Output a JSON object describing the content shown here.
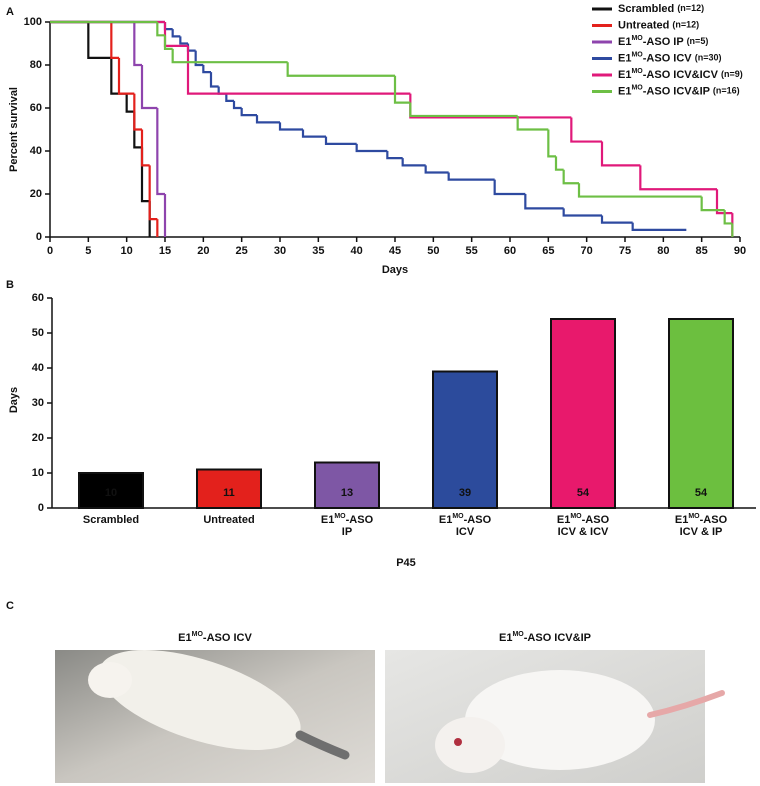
{
  "chart_data": [
    {
      "type": "step",
      "panel_label": "A",
      "x_label": "Days",
      "y_label": "Percent survival",
      "xlim": [
        0,
        90
      ],
      "xticks": [
        0,
        5,
        10,
        15,
        20,
        25,
        30,
        35,
        40,
        45,
        50,
        55,
        60,
        65,
        70,
        75,
        80,
        85,
        90
      ],
      "ylim": [
        0,
        100
      ],
      "yticks": [
        0,
        20,
        40,
        60,
        80,
        100
      ],
      "series": [
        {
          "name": "Scrambled (n=12)",
          "color": "#111111",
          "x": [
            0,
            5,
            8,
            10,
            11,
            12,
            13
          ],
          "values": [
            100,
            83.3,
            66.7,
            58.3,
            41.7,
            16.7,
            0
          ]
        },
        {
          "name": "Untreated (n=12)",
          "color": "#e3211c",
          "x": [
            0,
            8,
            9,
            11,
            12,
            13,
            14
          ],
          "values": [
            100,
            83.3,
            66.7,
            50,
            33.3,
            8.3,
            0
          ]
        },
        {
          "name": "E1MO-ASO IP (n=5)",
          "color": "#8e44ad",
          "x": [
            0,
            11,
            12,
            14,
            15
          ],
          "values": [
            100,
            80,
            60,
            20,
            0
          ]
        },
        {
          "name": "E1MO-ASO ICV (n=30)",
          "color": "#2e4aa0",
          "x": [
            0,
            15,
            16,
            17,
            18,
            19,
            20,
            21,
            22,
            23,
            24,
            25,
            27,
            30,
            33,
            36,
            40,
            44,
            46,
            49,
            52,
            58,
            62,
            67,
            72,
            76,
            83
          ],
          "values": [
            100,
            96.7,
            93.3,
            90,
            86.7,
            80,
            76.7,
            70,
            66.7,
            63.3,
            60,
            56.7,
            53.3,
            50,
            46.7,
            43.3,
            40,
            36.7,
            33.3,
            30,
            26.7,
            20,
            13.3,
            10,
            6.7,
            3.3,
            3.3
          ]
        },
        {
          "name": "E1MO-ASO ICV&ICV (n=9)",
          "color": "#e0197a",
          "x": [
            0,
            15,
            18,
            47,
            68,
            72,
            77,
            87,
            89
          ],
          "values": [
            100,
            88.9,
            66.7,
            55.6,
            44.4,
            33.3,
            22.2,
            11.1,
            0
          ]
        },
        {
          "name": "E1MO-ASO ICV&IP (n=16)",
          "color": "#6dbf45",
          "x": [
            0,
            14,
            15,
            16,
            31,
            45,
            47,
            61,
            65,
            66,
            67,
            69,
            85,
            88,
            89
          ],
          "values": [
            100,
            93.8,
            87.5,
            81.3,
            75,
            62.5,
            56.3,
            50,
            37.5,
            31.3,
            25,
            18.8,
            12.5,
            6.3,
            0
          ]
        }
      ]
    },
    {
      "type": "bar",
      "panel_label": "B",
      "x_label": "P45",
      "y_label": "Days",
      "categories": [
        "Scrambled",
        "Untreated",
        "E1MO-ASO\nIP",
        "E1MO-ASO\nICV",
        "E1MO-ASO\nICV & ICV",
        "E1MO-ASO\nICV & IP"
      ],
      "values": [
        10,
        11,
        13,
        39,
        54,
        54
      ],
      "colors": [
        "#000000",
        "#e3211c",
        "#7e57a5",
        "#2c4b9c",
        "#e8196c",
        "#6cbf3f"
      ],
      "ylim": [
        0,
        60
      ],
      "yticks": [
        0,
        10,
        20,
        30,
        40,
        50,
        60
      ]
    }
  ],
  "photos": {
    "panel_label": "C",
    "items": [
      {
        "title": "E1MO-ASO ICV"
      },
      {
        "title": "E1MO-ASO ICV&IP"
      }
    ]
  }
}
